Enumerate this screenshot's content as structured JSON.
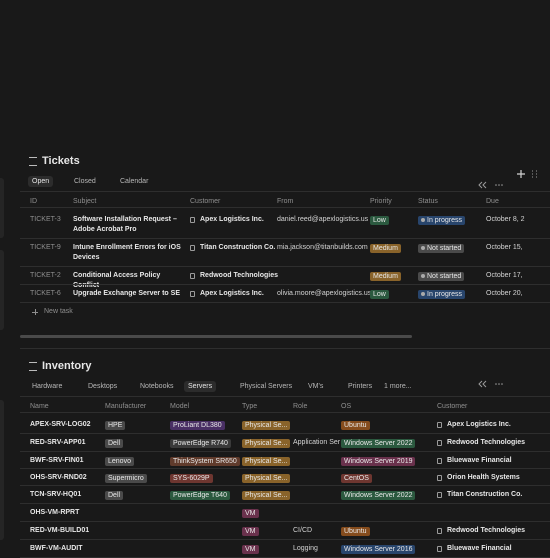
{
  "tickets": {
    "title": "Tickets",
    "views": [
      "Open",
      "Closed",
      "Calendar"
    ],
    "active_view": 0,
    "columns": [
      "ID",
      "Subject",
      "Customer",
      "From",
      "Priority",
      "Status",
      "Due"
    ],
    "rows": [
      {
        "id": "TICKET-3",
        "subject": "Software Installation Request – Adobe Acrobat Pro",
        "customer": "Apex Logistics Inc.",
        "from": "daniel.reed@apexlogistics.us",
        "priority": {
          "text": "Low",
          "color": "#2b593f"
        },
        "status": {
          "text": "In progress",
          "color": "#28456c"
        },
        "due": "October 8, 2"
      },
      {
        "id": "TICKET-9",
        "subject": "Intune Enrollment Errors for iOS Devices",
        "customer": "Titan Construction Co.",
        "from": "mia.jackson@titanbuilds.com",
        "priority": {
          "text": "Medium",
          "color": "#89632a"
        },
        "status": {
          "text": "Not started",
          "color": "#4a4a4a"
        },
        "due": "October 15,"
      },
      {
        "id": "TICKET-2",
        "subject": "Conditional Access Policy Conflict",
        "customer": "Redwood Technologies",
        "priority": {
          "text": "Medium",
          "color": "#89632a"
        },
        "status": {
          "text": "Not started",
          "color": "#4a4a4a"
        },
        "due": "October 17,"
      },
      {
        "id": "TICKET-6",
        "subject": "Upgrade Exchange Server to SE",
        "customer": "Apex Logistics Inc.",
        "from": "olivia.moore@apexlogistics.us",
        "priority": {
          "text": "Low",
          "color": "#2b593f"
        },
        "status": {
          "text": "In progress",
          "color": "#28456c"
        },
        "due": "October 20,"
      }
    ],
    "new_row": "New task"
  },
  "inventory": {
    "title": "Inventory",
    "views": [
      "Hardware",
      "Desktops",
      "Notebooks",
      "Servers",
      "Physical Servers",
      "VM's",
      "Printers",
      "1 more..."
    ],
    "active_view": 3,
    "columns": [
      "Name",
      "Manufacturer",
      "Model",
      "Type",
      "Role",
      "OS",
      "Customer"
    ],
    "rows": [
      {
        "name": "APEX-SRV-LOG02",
        "manufacturer": {
          "text": "HPE",
          "color": "#4a4a4a"
        },
        "model": {
          "text": "ProLiant DL380",
          "color": "#492f64"
        },
        "type": {
          "text": "Physical Se...",
          "color": "#89632a"
        },
        "os": {
          "text": "Ubuntu",
          "color": "#854c1d"
        },
        "customer": "Apex Logistics Inc."
      },
      {
        "name": "RED-SRV-APP01",
        "manufacturer": {
          "text": "Dell",
          "color": "#4a4a4a"
        },
        "model": {
          "text": "PowerEdge R740",
          "color": "#3a3a3a"
        },
        "type": {
          "text": "Physical Se...",
          "color": "#89632a"
        },
        "role": "Application Ser",
        "os": {
          "text": "Windows Server 2022",
          "color": "#2b593f"
        },
        "customer": "Redwood Technologies"
      },
      {
        "name": "BWF-SRV-FIN01",
        "manufacturer": {
          "text": "Lenovo",
          "color": "#4a4a4a"
        },
        "model": {
          "text": "ThinkSystem SR650",
          "color": "#603b2c"
        },
        "type": {
          "text": "Physical Se...",
          "color": "#89632a"
        },
        "os": {
          "text": "Windows Server 2019",
          "color": "#69314c"
        },
        "customer": "Bluewave Financial"
      },
      {
        "name": "OHS-SRV-RND02",
        "manufacturer": {
          "text": "Supermicro",
          "color": "#4a4a4a"
        },
        "model": {
          "text": "SYS-6029P",
          "color": "#6e3630"
        },
        "type": {
          "text": "Physical Se...",
          "color": "#89632a"
        },
        "os": {
          "text": "CentOS",
          "color": "#6e3630"
        },
        "customer": "Orion Health Systems"
      },
      {
        "name": "TCN-SRV-HQ01",
        "manufacturer": {
          "text": "Dell",
          "color": "#4a4a4a"
        },
        "model": {
          "text": "PowerEdge T640",
          "color": "#2b593f"
        },
        "type": {
          "text": "Physical Se...",
          "color": "#89632a"
        },
        "os": {
          "text": "Windows Server 2022",
          "color": "#2b593f"
        },
        "customer": "Titan Construction Co."
      },
      {
        "name": "OHS-VM-RPRT",
        "type": {
          "text": "VM",
          "color": "#69314c"
        }
      },
      {
        "name": "RED-VM-BUILD01",
        "type": {
          "text": "VM",
          "color": "#69314c"
        },
        "role": "CI/CD",
        "os": {
          "text": "Ubuntu",
          "color": "#854c1d"
        },
        "customer": "Redwood Technologies"
      },
      {
        "name": "BWF-VM-AUDIT",
        "type": {
          "text": "VM",
          "color": "#69314c"
        },
        "role": "Logging",
        "os": {
          "text": "Windows Server 2016",
          "color": "#28456c"
        },
        "customer": "Bluewave Financial"
      }
    ]
  }
}
